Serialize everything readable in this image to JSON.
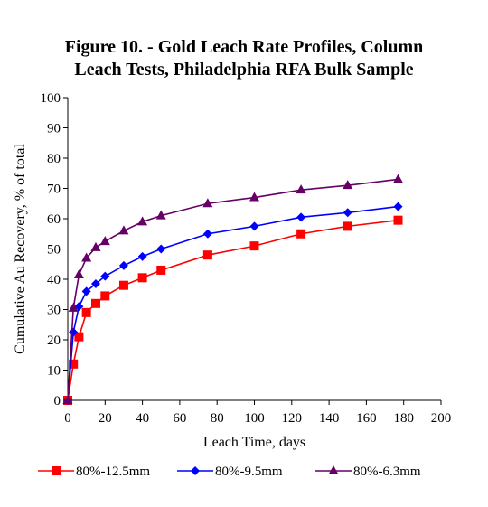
{
  "chart_data": {
    "type": "line",
    "title": [
      "Figure 10. - Gold Leach Rate Profiles, Column",
      "Leach Tests, Philadelphia RFA Bulk Sample"
    ],
    "xlabel": "Leach Time, days",
    "ylabel": "Cumulative Au Recovery, % of total",
    "xlim": [
      0,
      200
    ],
    "ylim": [
      0,
      100
    ],
    "x_ticks": [
      "0",
      "20",
      "40",
      "60",
      "80",
      "100",
      "120",
      "140",
      "160",
      "180",
      "200"
    ],
    "y_ticks": [
      "0",
      "10",
      "20",
      "30",
      "40",
      "50",
      "60",
      "70",
      "80",
      "90",
      "100"
    ],
    "grid": false,
    "legend_position": "bottom",
    "series": [
      {
        "name": "80%-12.5mm",
        "color": "#ff0000",
        "marker": "square",
        "x": [
          0,
          3,
          6,
          10,
          15,
          20,
          30,
          40,
          50,
          75,
          100,
          125,
          150,
          177
        ],
        "y": [
          0,
          12,
          21,
          29,
          32,
          34.5,
          38,
          40.5,
          43,
          48,
          51,
          55,
          57.5,
          59.5
        ]
      },
      {
        "name": "80%-9.5mm",
        "color": "#0000ff",
        "marker": "diamond",
        "x": [
          0,
          3,
          6,
          10,
          15,
          20,
          30,
          40,
          50,
          75,
          100,
          125,
          150,
          177
        ],
        "y": [
          0,
          22.5,
          31,
          36,
          38.5,
          41,
          44.5,
          47.5,
          50,
          55,
          57.5,
          60.5,
          62,
          64
        ]
      },
      {
        "name": "80%-6.3mm",
        "color": "#660066",
        "marker": "triangle",
        "x": [
          0,
          3,
          6,
          10,
          15,
          20,
          30,
          40,
          50,
          75,
          100,
          125,
          150,
          177
        ],
        "y": [
          0,
          30.5,
          41.5,
          47,
          50.5,
          52.5,
          56,
          59,
          61,
          65,
          67,
          69.5,
          71,
          73
        ]
      }
    ]
  }
}
